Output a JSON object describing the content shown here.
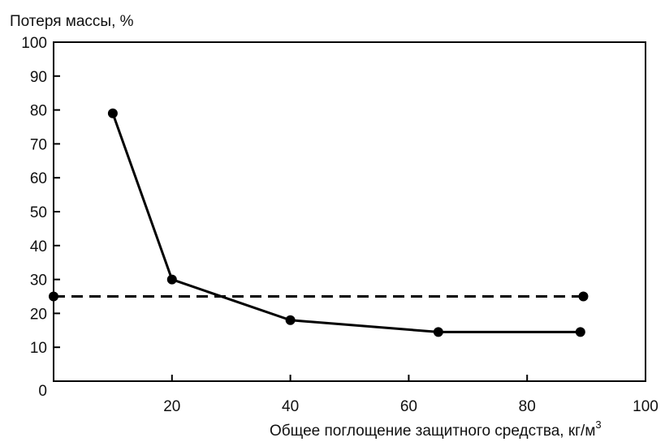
{
  "chart_data": {
    "type": "line",
    "ylabel": "Потеря массы, %",
    "xlabel_main": "Общее поглощение защитного средства, кг/м",
    "xlabel_sup": "3",
    "xlim": [
      0,
      100
    ],
    "ylim": [
      0,
      100
    ],
    "x_ticks": [
      0,
      20,
      40,
      60,
      80,
      100
    ],
    "y_ticks": [
      0,
      10,
      20,
      30,
      40,
      50,
      60,
      70,
      80,
      90,
      100
    ],
    "grid": false,
    "series": [
      {
        "style": "solid",
        "color": "#000000",
        "points": [
          {
            "x": 10,
            "y": 79
          },
          {
            "x": 20,
            "y": 30
          },
          {
            "x": 40,
            "y": 18
          },
          {
            "x": 65,
            "y": 14.5
          },
          {
            "x": 89,
            "y": 14.5
          }
        ]
      },
      {
        "style": "dashed",
        "color": "#000000",
        "points": [
          {
            "x": 0,
            "y": 25
          },
          {
            "x": 89.5,
            "y": 25
          }
        ]
      }
    ]
  }
}
